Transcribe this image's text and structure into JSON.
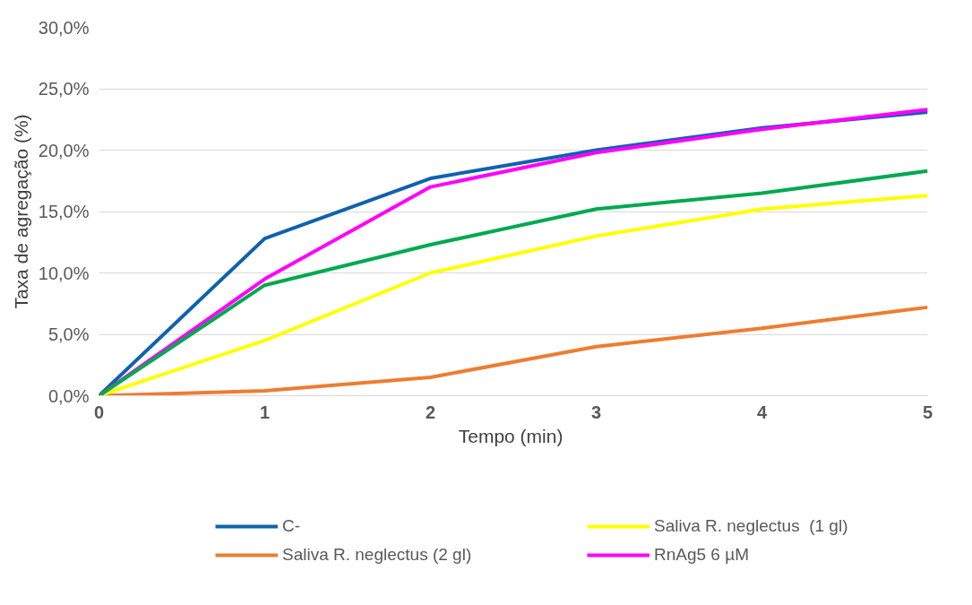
{
  "chart_data": {
    "type": "line",
    "xlabel": "Tempo  (min)",
    "ylabel": "Taxa de agregação (%)",
    "x": [
      0,
      1,
      2,
      3,
      4,
      5
    ],
    "series": [
      {
        "name": "C-",
        "color": "#0f62ad",
        "values": [
          0,
          12.8,
          17.7,
          20.0,
          21.8,
          23.1
        ]
      },
      {
        "name": "Saliva R. neglectus (2 gl)",
        "color": "#ed7d31",
        "values": [
          0,
          0.4,
          1.5,
          4.0,
          5.5,
          7.2
        ]
      },
      {
        "name": "Saliva R. neglectus  (1 gl)",
        "color": "#ffff00",
        "values": [
          0,
          4.5,
          10.0,
          13.0,
          15.2,
          16.3
        ]
      },
      {
        "name": "RnAg5 6 µM",
        "color": "#ff00ff",
        "values": [
          0,
          9.5,
          17.0,
          19.8,
          21.7,
          23.3
        ]
      },
      {
        "color": "#00a94f",
        "values": [
          0,
          9.0,
          12.3,
          15.2,
          16.5,
          18.3
        ]
      }
    ],
    "xlim": [
      0,
      5
    ],
    "xticks": [
      0,
      1,
      2,
      3,
      4,
      5
    ],
    "ylim": [
      0,
      30
    ],
    "yticks": [
      {
        "value": 0,
        "label": "0,0%"
      },
      {
        "value": 5,
        "label": "5,0%"
      },
      {
        "value": 10,
        "label": "10,0%"
      },
      {
        "value": 15,
        "label": "15,0%"
      },
      {
        "value": 20,
        "label": "20,0%"
      },
      {
        "value": 25,
        "label": "25,0%"
      },
      {
        "value": 30,
        "label": "30,0%"
      }
    ],
    "grid": "y",
    "legend": "bottom",
    "marker": "none",
    "line_style": "solid"
  }
}
